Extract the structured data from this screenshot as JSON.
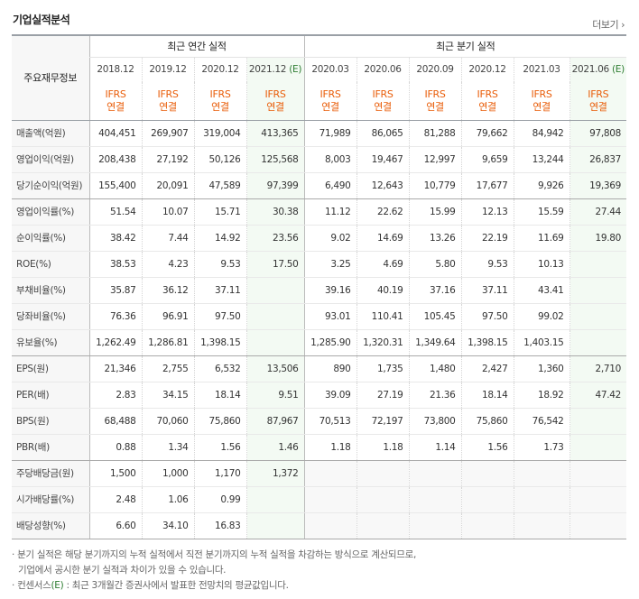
{
  "header": {
    "title": "기업실적분석",
    "more_label": "더보기",
    "more_icon": "chevron-right-icon"
  },
  "table": {
    "corner_label": "주요재무정보",
    "group_annual": "최근 연간 실적",
    "group_quarter": "최근 분기 실적",
    "periods": [
      "2018.12",
      "2019.12",
      "2020.12",
      "2021.12",
      "2020.03",
      "2020.06",
      "2020.09",
      "2020.12",
      "2021.03",
      "2021.06"
    ],
    "estimate_mark": "(E)",
    "ifrs_line1": "IFRS",
    "ifrs_line2": "연결",
    "rows": [
      {
        "label": "매출액(억원)",
        "values": [
          "404,451",
          "269,907",
          "319,004",
          "413,365",
          "71,989",
          "86,065",
          "81,288",
          "79,662",
          "84,942",
          "97,808"
        ]
      },
      {
        "label": "영업이익(억원)",
        "values": [
          "208,438",
          "27,192",
          "50,126",
          "125,568",
          "8,003",
          "19,467",
          "12,997",
          "9,659",
          "13,244",
          "26,837"
        ]
      },
      {
        "label": "당기순이익(억원)",
        "values": [
          "155,400",
          "20,091",
          "47,589",
          "97,399",
          "6,490",
          "12,643",
          "10,779",
          "17,677",
          "9,926",
          "19,369"
        ]
      },
      {
        "label": "영업이익률(%)",
        "values": [
          "51.54",
          "10.07",
          "15.71",
          "30.38",
          "11.12",
          "22.62",
          "15.99",
          "12.13",
          "15.59",
          "27.44"
        ]
      },
      {
        "label": "순이익률(%)",
        "values": [
          "38.42",
          "7.44",
          "14.92",
          "23.56",
          "9.02",
          "14.69",
          "13.26",
          "22.19",
          "11.69",
          "19.80"
        ]
      },
      {
        "label": "ROE(%)",
        "values": [
          "38.53",
          "4.23",
          "9.53",
          "17.50",
          "3.25",
          "4.69",
          "5.80",
          "9.53",
          "10.13",
          ""
        ]
      },
      {
        "label": "부채비율(%)",
        "values": [
          "35.87",
          "36.12",
          "37.11",
          "",
          "39.16",
          "40.19",
          "37.16",
          "37.11",
          "43.41",
          ""
        ]
      },
      {
        "label": "당좌비율(%)",
        "values": [
          "76.36",
          "96.91",
          "97.50",
          "",
          "93.01",
          "110.41",
          "105.45",
          "97.50",
          "99.02",
          ""
        ]
      },
      {
        "label": "유보율(%)",
        "values": [
          "1,262.49",
          "1,286.81",
          "1,398.15",
          "",
          "1,285.90",
          "1,320.31",
          "1,349.64",
          "1,398.15",
          "1,403.15",
          ""
        ]
      },
      {
        "label": "EPS(원)",
        "values": [
          "21,346",
          "2,755",
          "6,532",
          "13,506",
          "890",
          "1,735",
          "1,480",
          "2,427",
          "1,360",
          "2,710"
        ]
      },
      {
        "label": "PER(배)",
        "values": [
          "2.83",
          "34.15",
          "18.14",
          "9.51",
          "39.09",
          "27.19",
          "21.36",
          "18.14",
          "18.92",
          "47.42"
        ]
      },
      {
        "label": "BPS(원)",
        "values": [
          "68,488",
          "70,060",
          "75,860",
          "87,967",
          "70,513",
          "72,197",
          "73,800",
          "75,860",
          "76,542",
          ""
        ]
      },
      {
        "label": "PBR(배)",
        "values": [
          "0.88",
          "1.34",
          "1.56",
          "1.46",
          "1.18",
          "1.18",
          "1.14",
          "1.56",
          "1.73",
          ""
        ]
      },
      {
        "label": "주당배당금(원)",
        "values": [
          "1,500",
          "1,000",
          "1,170",
          "1,372",
          "",
          "",
          "",
          "",
          "",
          ""
        ]
      },
      {
        "label": "시가배당률(%)",
        "values": [
          "2.48",
          "1.06",
          "0.99",
          "",
          "",
          "",
          "",
          "",
          "",
          ""
        ]
      },
      {
        "label": "배당성향(%)",
        "values": [
          "6.60",
          "34.10",
          "16.83",
          "",
          "",
          "",
          "",
          "",
          "",
          ""
        ]
      }
    ]
  },
  "notes": {
    "note1_line1": "· 분기 실적은 해당 분기까지의 누적 실적에서 직전 분기까지의 누적 실적을 차감하는 방식으로 계산되므로,",
    "note1_line2": "기업에서 공시한 분기 실적과 차이가 있을 수 있습니다.",
    "note2_prefix": "· 컨센서스",
    "note2_mark": "(E)",
    "note2_suffix": " : 최근 3개월간 증권사에서 발표한 전망치의 평균값입니다."
  }
}
